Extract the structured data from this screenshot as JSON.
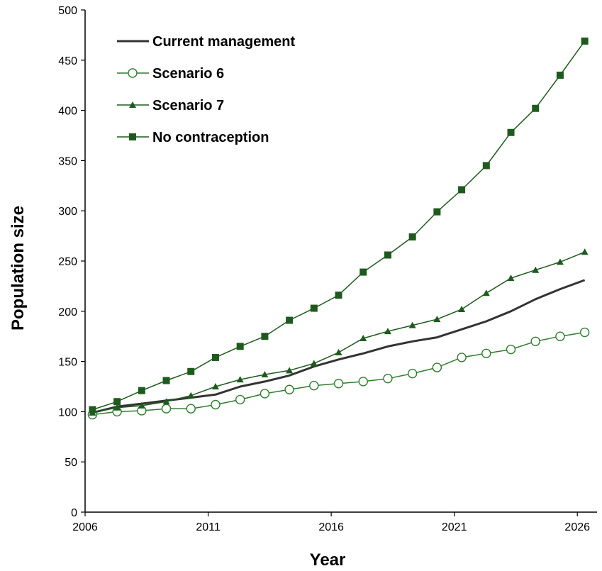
{
  "chart_data": {
    "type": "line",
    "title": "",
    "xlabel": "Year",
    "ylabel": "Population size",
    "xlim": [
      2006,
      2026.8
    ],
    "ylim": [
      0,
      500
    ],
    "x_ticks": [
      "2006",
      "2011",
      "2016",
      "2021",
      "2026"
    ],
    "y_ticks": [
      "0",
      "50",
      "100",
      "150",
      "200",
      "250",
      "300",
      "350",
      "400",
      "450",
      "500"
    ],
    "grid": false,
    "legend_position": "top-left",
    "series": [
      {
        "name": "Current management",
        "marker": "none",
        "color": "#333333",
        "x": [
          2006.3,
          2007.3,
          2008.3,
          2009.3,
          2010.3,
          2011.3,
          2012.3,
          2013.3,
          2014.3,
          2015.3,
          2016.3,
          2017.3,
          2018.3,
          2019.3,
          2020.3,
          2021.3,
          2022.3,
          2023.3,
          2024.3,
          2025.3,
          2026.3
        ],
        "values": [
          99,
          105,
          108,
          111,
          114,
          117,
          125,
          130,
          136,
          145,
          152,
          158,
          165,
          170,
          174,
          182,
          190,
          200,
          212,
          222,
          231
        ]
      },
      {
        "name": "Scenario 6",
        "marker": "open-circle",
        "color": "#2e7d2e",
        "x": [
          2006.3,
          2007.3,
          2008.3,
          2009.3,
          2010.3,
          2011.3,
          2012.3,
          2013.3,
          2014.3,
          2015.3,
          2016.3,
          2017.3,
          2018.3,
          2019.3,
          2020.3,
          2021.3,
          2022.3,
          2023.3,
          2024.3,
          2025.3,
          2026.3
        ],
        "values": [
          97,
          100,
          101,
          103,
          103,
          107,
          112,
          118,
          122,
          126,
          128,
          130,
          133,
          138,
          144,
          154,
          158,
          162,
          170,
          175,
          179
        ]
      },
      {
        "name": "Scenario 7",
        "marker": "triangle",
        "color": "#1e5a1e",
        "x": [
          2006.3,
          2007.3,
          2008.3,
          2009.3,
          2010.3,
          2011.3,
          2012.3,
          2013.3,
          2014.3,
          2015.3,
          2016.3,
          2017.3,
          2018.3,
          2019.3,
          2020.3,
          2021.3,
          2022.3,
          2023.3,
          2024.3,
          2025.3,
          2026.3
        ],
        "values": [
          99,
          104,
          106,
          110,
          116,
          125,
          132,
          137,
          141,
          148,
          159,
          173,
          180,
          186,
          192,
          202,
          218,
          233,
          241,
          249,
          259
        ]
      },
      {
        "name": "No contraception",
        "marker": "filled-square",
        "color": "#1e5a1e",
        "x": [
          2006.3,
          2007.3,
          2008.3,
          2009.3,
          2010.3,
          2011.3,
          2012.3,
          2013.3,
          2014.3,
          2015.3,
          2016.3,
          2017.3,
          2018.3,
          2019.3,
          2020.3,
          2021.3,
          2022.3,
          2023.3,
          2024.3,
          2025.3,
          2026.3
        ],
        "values": [
          102,
          110,
          121,
          131,
          140,
          154,
          165,
          175,
          191,
          203,
          216,
          239,
          256,
          274,
          299,
          321,
          345,
          378,
          402,
          435,
          469
        ]
      }
    ]
  }
}
